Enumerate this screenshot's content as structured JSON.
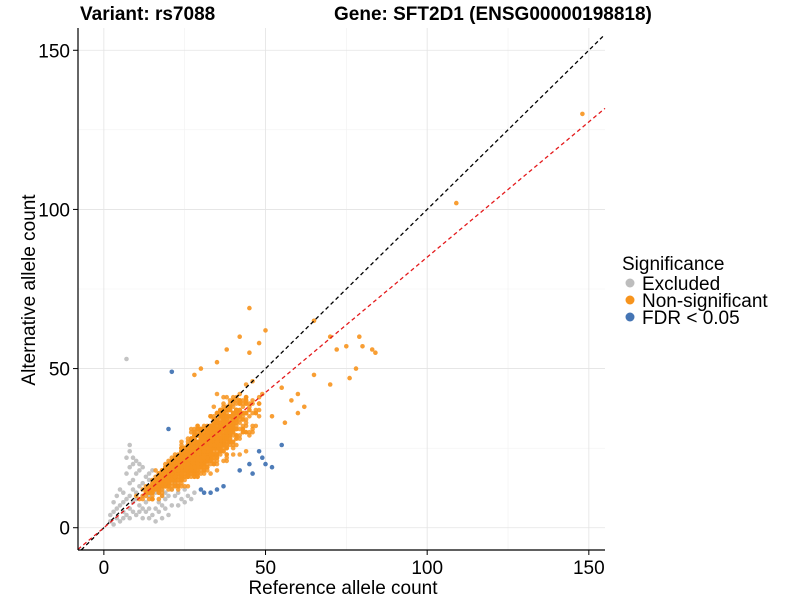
{
  "title": {
    "variant": "Variant: rs7088",
    "gene": "Gene: SFT2D1 (ENSG00000198818)"
  },
  "legend": {
    "title": "Significance",
    "items": [
      {
        "label": "Excluded",
        "color": "#bdbdbd"
      },
      {
        "label": "Non-significant",
        "color": "#f7941d"
      },
      {
        "label": "FDR < 0.05",
        "color": "#4575b4"
      }
    ]
  },
  "chart_data": {
    "type": "scatter",
    "xlabel": "Reference allele count",
    "ylabel": "Alternative allele count",
    "xlim": [
      -8,
      155
    ],
    "ylim": [
      -7,
      157
    ],
    "x_ticks": [
      0,
      50,
      100,
      150
    ],
    "y_ticks": [
      0,
      50,
      100,
      150
    ],
    "x_tick_labels": [
      "0",
      "50",
      "100",
      "150"
    ],
    "y_tick_labels": [
      "0",
      "50",
      "100",
      "150"
    ],
    "grid": true,
    "reference_lines": [
      {
        "name": "identity",
        "slope": 1.0,
        "intercept": 0,
        "color": "#000000",
        "style": "dashed"
      },
      {
        "name": "fitted",
        "slope": 0.85,
        "intercept": 0,
        "color": "#e41a1c",
        "style": "dashed"
      }
    ],
    "series": [
      {
        "name": "Excluded",
        "color": "#bdbdbd",
        "points": [
          [
            7,
            53
          ],
          [
            3,
            5
          ],
          [
            4,
            6
          ],
          [
            5,
            7
          ],
          [
            6,
            5
          ],
          [
            6,
            8
          ],
          [
            7,
            9
          ],
          [
            8,
            6
          ],
          [
            8,
            10
          ],
          [
            9,
            8
          ],
          [
            9,
            12
          ],
          [
            10,
            9
          ],
          [
            10,
            11
          ],
          [
            11,
            7
          ],
          [
            11,
            13
          ],
          [
            12,
            10
          ],
          [
            12,
            14
          ],
          [
            13,
            8
          ],
          [
            13,
            12
          ],
          [
            14,
            10
          ],
          [
            14,
            15
          ],
          [
            15,
            9
          ],
          [
            15,
            12
          ],
          [
            16,
            11
          ],
          [
            16,
            14
          ],
          [
            17,
            8
          ],
          [
            17,
            13
          ],
          [
            18,
            10
          ],
          [
            18,
            12
          ],
          [
            19,
            11
          ],
          [
            19,
            9
          ],
          [
            20,
            10
          ],
          [
            20,
            13
          ],
          [
            21,
            12
          ],
          [
            22,
            10
          ],
          [
            22,
            14
          ],
          [
            23,
            11
          ],
          [
            24,
            9
          ],
          [
            25,
            12
          ],
          [
            26,
            10
          ],
          [
            6,
            3
          ],
          [
            7,
            4
          ],
          [
            8,
            3
          ],
          [
            9,
            5
          ],
          [
            10,
            4
          ],
          [
            11,
            5
          ],
          [
            12,
            6
          ],
          [
            13,
            5
          ],
          [
            14,
            6
          ],
          [
            15,
            4
          ],
          [
            16,
            6
          ],
          [
            17,
            5
          ],
          [
            18,
            7
          ],
          [
            19,
            6
          ],
          [
            20,
            4
          ],
          [
            21,
            7
          ],
          [
            8,
            14
          ],
          [
            9,
            15
          ],
          [
            10,
            17
          ],
          [
            11,
            18
          ],
          [
            8,
            19
          ],
          [
            7,
            17
          ],
          [
            9,
            22
          ],
          [
            8,
            24
          ],
          [
            7,
            22
          ],
          [
            8,
            26
          ],
          [
            4,
            10
          ],
          [
            5,
            12
          ],
          [
            6,
            11
          ],
          [
            3,
            8
          ],
          [
            4,
            3
          ],
          [
            5,
            2
          ],
          [
            2,
            4
          ],
          [
            2,
            2
          ],
          [
            3,
            1
          ],
          [
            12,
            3
          ],
          [
            14,
            3
          ],
          [
            16,
            2
          ],
          [
            18,
            3
          ],
          [
            23,
            7
          ],
          [
            25,
            8
          ],
          [
            27,
            9
          ],
          [
            28,
            11
          ],
          [
            13,
            16
          ],
          [
            14,
            17
          ],
          [
            15,
            18
          ],
          [
            12,
            19
          ],
          [
            11,
            20
          ],
          [
            10,
            21
          ],
          [
            9,
            20
          ]
        ]
      },
      {
        "name": "Non-significant",
        "color": "#f7941d",
        "generated_count": 1700,
        "extra_points": [
          [
            148,
            130
          ],
          [
            109,
            102
          ],
          [
            45,
            69
          ],
          [
            65,
            65
          ],
          [
            70,
            60
          ],
          [
            72,
            56
          ],
          [
            75,
            57
          ],
          [
            79,
            60
          ],
          [
            80,
            57
          ],
          [
            83,
            56
          ],
          [
            84,
            55
          ],
          [
            78,
            50
          ],
          [
            76,
            47
          ],
          [
            70,
            45
          ],
          [
            65,
            48
          ],
          [
            60,
            42
          ],
          [
            58,
            40
          ],
          [
            62,
            38
          ],
          [
            55,
            44
          ],
          [
            50,
            62
          ],
          [
            48,
            58
          ],
          [
            42,
            60
          ],
          [
            38,
            56
          ],
          [
            45,
            55
          ],
          [
            35,
            52
          ],
          [
            30,
            50
          ],
          [
            28,
            48
          ],
          [
            52,
            35
          ],
          [
            56,
            33
          ],
          [
            60,
            36
          ]
        ]
      },
      {
        "name": "FDR < 0.05",
        "color": "#4575b4",
        "points": [
          [
            21,
            49
          ],
          [
            55,
            26
          ],
          [
            49,
            22
          ],
          [
            50,
            20
          ],
          [
            46,
            17
          ],
          [
            42,
            18
          ],
          [
            35,
            12
          ],
          [
            33,
            11
          ],
          [
            31,
            11
          ],
          [
            30,
            12
          ],
          [
            48,
            24
          ],
          [
            20,
            31
          ],
          [
            37,
            13
          ],
          [
            45,
            20
          ],
          [
            52,
            19
          ]
        ]
      }
    ]
  }
}
